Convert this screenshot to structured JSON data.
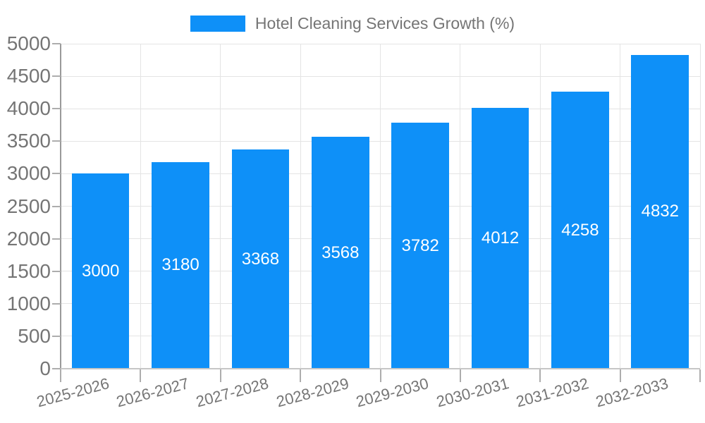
{
  "legend": {
    "label": "Hotel Cleaning Services Growth (%)"
  },
  "colors": {
    "bar": "#0E90F8",
    "grid": "#E4E4E4",
    "axis_y": "#9A9A9A",
    "axis_x": "#C6C6C6",
    "tick": "#ADADAD",
    "tick_label": "#757575",
    "bar_label": "#FFFFFF",
    "legend_text": "#757575"
  },
  "chart_data": {
    "type": "bar",
    "title": "Hotel Cleaning Services Growth (%)",
    "categories": [
      "2025-2026",
      "2026-2027",
      "2027-2028",
      "2028-2029",
      "2029-2030",
      "2030-2031",
      "2031-2032",
      "2032-2033"
    ],
    "values": [
      3000,
      3180,
      3368,
      3568,
      3782,
      4012,
      4258,
      4832
    ],
    "xlabel": "",
    "ylabel": "",
    "ylim": [
      0,
      5000
    ],
    "yticks": [
      0,
      500,
      1000,
      1500,
      2000,
      2500,
      3000,
      3500,
      4000,
      4500,
      5000
    ],
    "grid": true,
    "legend_position": "top-center",
    "bar_label_position": "inside-center",
    "x_label_rotation_deg": -15
  }
}
